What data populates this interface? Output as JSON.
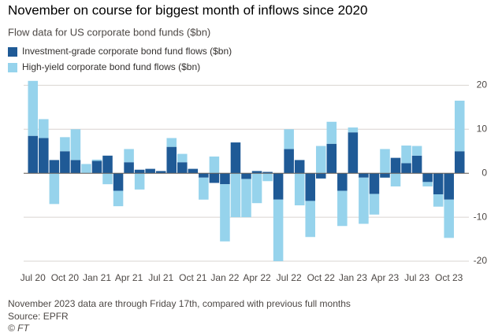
{
  "chart_data": {
    "type": "bar",
    "stacked": true,
    "title": "November on course for biggest month of inflows since 2020",
    "subtitle": "Flow data for US corporate bond funds ($bn)",
    "categories": [
      "Jul 20",
      null,
      null,
      "Oct 20",
      null,
      null,
      "Jan 21",
      null,
      null,
      "Apr 21",
      null,
      null,
      "Jul 21",
      null,
      null,
      "Oct 21",
      null,
      null,
      "Jan 22",
      null,
      null,
      "Apr 22",
      null,
      null,
      "Jul 22",
      null,
      null,
      "Oct 22",
      null,
      null,
      "Jan 23",
      null,
      null,
      "Apr 23",
      null,
      null,
      "Jul 23",
      null,
      null,
      "Oct 23",
      null
    ],
    "series": [
      {
        "name": "Investment-grade corporate bond fund flows ($bn)",
        "color": "#1f5a96",
        "values": [
          8.5,
          8,
          3,
          5,
          3,
          0,
          2.8,
          4,
          -4,
          2.5,
          0.8,
          1,
          0.5,
          6,
          2.5,
          1,
          -1,
          -2.2,
          -2.5,
          7,
          -1.3,
          0.5,
          0.3,
          -6,
          5.5,
          3,
          -6.3,
          -1.2,
          6.7,
          -4,
          9.3,
          -1,
          -4.7,
          -1,
          3.5,
          2.3,
          4,
          -2,
          -4.8,
          -6,
          5
        ]
      },
      {
        "name": "High-yield corporate bond fund flows ($bn)",
        "color": "#96d3ec",
        "values": [
          12.5,
          4.3,
          -7,
          3.2,
          7,
          2.1,
          0.3,
          -2.5,
          -3.5,
          3,
          -3.7,
          0,
          0,
          2,
          1.9,
          0,
          -5,
          3.8,
          -13,
          -10,
          -8.7,
          -6.8,
          -1.8,
          -14,
          4.5,
          -7.3,
          -8.2,
          6.2,
          5,
          -8,
          1.1,
          -10.5,
          -4.7,
          5.5,
          -3,
          4,
          2.2,
          -1,
          -2.8,
          -8.7,
          11.5
        ]
      }
    ],
    "ylim": [
      -20,
      21.5
    ],
    "yticks": [
      -20,
      -10,
      0,
      10,
      20
    ],
    "grid": true,
    "y_axis_side": "right",
    "notes": [
      "November 2023 data are through Friday 17th, compared with previous full months",
      "Source: EPFR",
      "© FT"
    ]
  }
}
